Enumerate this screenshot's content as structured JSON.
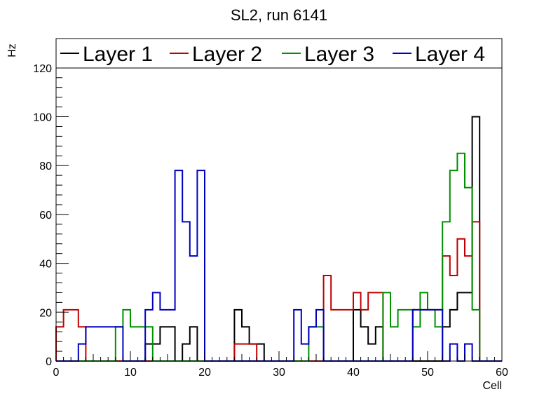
{
  "chart_data": {
    "type": "histogram-step",
    "title": "SL2, run 6141",
    "xlabel": "Cell",
    "ylabel": "Hz",
    "xlim": [
      0,
      60
    ],
    "ylim": [
      0,
      132
    ],
    "xticks": [
      0,
      10,
      20,
      30,
      40,
      50,
      60
    ],
    "yticks": [
      0,
      20,
      40,
      60,
      80,
      100,
      120
    ],
    "bin_width": 1,
    "legend_position": "top",
    "series": [
      {
        "name": "Layer 1",
        "color": "#000000",
        "values": [
          0,
          0,
          0,
          0,
          0,
          0,
          0,
          0,
          0,
          0,
          0,
          0,
          7,
          7,
          14,
          14,
          0,
          7,
          14,
          0,
          0,
          0,
          0,
          0,
          21,
          14,
          7,
          7,
          0,
          0,
          0,
          0,
          0,
          0,
          0,
          0,
          0,
          0,
          0,
          0,
          21,
          14,
          7,
          14,
          0,
          0,
          0,
          0,
          0,
          0,
          0,
          0,
          14,
          21,
          28,
          28,
          100,
          0,
          0,
          0
        ]
      },
      {
        "name": "Layer 2",
        "color": "#c00000",
        "values": [
          14,
          21,
          21,
          14,
          0,
          0,
          0,
          0,
          0,
          0,
          0,
          0,
          0,
          0,
          0,
          0,
          0,
          0,
          0,
          0,
          0,
          0,
          0,
          0,
          7,
          7,
          7,
          0,
          0,
          0,
          0,
          0,
          0,
          0,
          0,
          0,
          35,
          21,
          21,
          21,
          28,
          21,
          28,
          28,
          0,
          0,
          0,
          0,
          21,
          21,
          21,
          21,
          43,
          35,
          50,
          43,
          57,
          0,
          0,
          0
        ]
      },
      {
        "name": "Layer 3",
        "color": "#009000",
        "values": [
          0,
          0,
          0,
          0,
          0,
          0,
          0,
          0,
          14,
          21,
          14,
          14,
          14,
          0,
          0,
          0,
          0,
          0,
          0,
          0,
          0,
          0,
          0,
          0,
          0,
          0,
          0,
          0,
          0,
          0,
          0,
          0,
          0,
          0,
          14,
          14,
          0,
          0,
          0,
          0,
          0,
          0,
          0,
          0,
          28,
          14,
          21,
          21,
          14,
          28,
          21,
          14,
          57,
          78,
          85,
          71,
          21,
          0,
          0,
          0
        ]
      },
      {
        "name": "Layer 4",
        "color": "#0000c0",
        "values": [
          0,
          0,
          0,
          7,
          14,
          14,
          14,
          14,
          14,
          0,
          0,
          0,
          21,
          28,
          21,
          21,
          78,
          57,
          43,
          78,
          0,
          0,
          0,
          0,
          0,
          0,
          0,
          0,
          0,
          0,
          0,
          0,
          21,
          7,
          14,
          21,
          0,
          0,
          0,
          0,
          0,
          0,
          0,
          0,
          0,
          0,
          0,
          0,
          21,
          21,
          21,
          21,
          0,
          7,
          0,
          7,
          0,
          0,
          0,
          0
        ]
      }
    ]
  }
}
